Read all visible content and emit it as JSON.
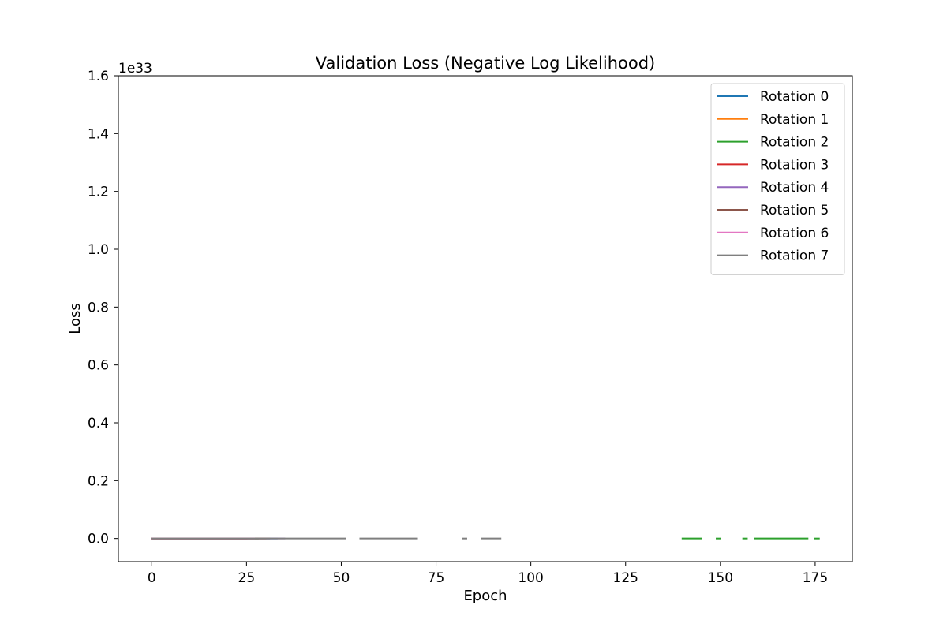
{
  "chart_data": {
    "type": "line",
    "title": "Validation Loss (Negative Log Likelihood)",
    "xlabel": "Epoch",
    "ylabel": "Loss",
    "y_offset_label": "1e33",
    "xlim": [
      -8.8,
      184.8
    ],
    "ylim": [
      -0.08,
      1.6
    ],
    "x_ticks": [
      0,
      25,
      50,
      75,
      100,
      125,
      150,
      175
    ],
    "y_ticks": [
      0.0,
      0.2,
      0.4,
      0.6,
      0.8,
      1.0,
      1.2,
      1.4,
      1.6
    ],
    "x_tick_labels": [
      "0",
      "25",
      "50",
      "75",
      "100",
      "125",
      "150",
      "175"
    ],
    "y_tick_labels": [
      "0.0",
      "0.2",
      "0.4",
      "0.6",
      "0.8",
      "1.0",
      "1.2",
      "1.4",
      "1.6"
    ],
    "grid": false,
    "legend_position": "top-right",
    "series": [
      {
        "name": "Rotation 0",
        "color": "#1f77b4",
        "segments": [
          [
            0,
            33
          ]
        ]
      },
      {
        "name": "Rotation 1",
        "color": "#ff7f0e",
        "segments": [
          [
            0,
            30
          ]
        ]
      },
      {
        "name": "Rotation 2",
        "color": "#2ca02c",
        "segments": [
          [
            0,
            28
          ],
          [
            140,
            145
          ],
          [
            149,
            150
          ],
          [
            156,
            157
          ],
          [
            159,
            173
          ],
          [
            175,
            176
          ]
        ]
      },
      {
        "name": "Rotation 3",
        "color": "#d62728",
        "segments": [
          [
            0,
            25
          ]
        ]
      },
      {
        "name": "Rotation 4",
        "color": "#9467bd",
        "segments": [
          [
            0,
            35
          ]
        ]
      },
      {
        "name": "Rotation 5",
        "color": "#8c564b",
        "segments": [
          [
            0,
            31
          ]
        ]
      },
      {
        "name": "Rotation 6",
        "color": "#e377c2",
        "segments": [
          [
            0,
            27
          ]
        ]
      },
      {
        "name": "Rotation 7",
        "color": "#7f7f7f",
        "segments": [
          [
            0,
            51
          ],
          [
            55,
            70
          ],
          [
            82,
            83
          ],
          [
            87,
            92
          ]
        ]
      }
    ]
  }
}
